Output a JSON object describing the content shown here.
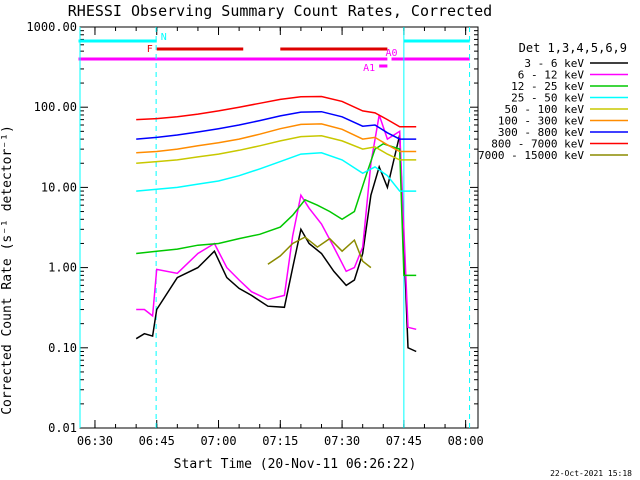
{
  "chart_data": {
    "type": "line",
    "title": "RHESSI Observing Summary Count Rates, Corrected",
    "xlabel": "Start Time (20-Nov-11 06:26:22)",
    "ylabel": "Corrected Count Rate (s⁻¹ detector⁻¹)",
    "xscale": "time",
    "yscale": "log",
    "xlim": [
      "06:26:22",
      "08:03:00"
    ],
    "ylim": [
      0.01,
      1000
    ],
    "xticks": [
      "06:30",
      "06:45",
      "07:00",
      "07:15",
      "07:30",
      "07:45",
      "08:00"
    ],
    "yticks": [
      "0.01",
      "0.10",
      "1.00",
      "10.00",
      "100.00",
      "1000.00"
    ],
    "legend_title": "Det 1,3,4,5,6,9",
    "legend_position": "right",
    "series": [
      {
        "name": "3 - 6 keV",
        "color": "#000000",
        "x": [
          "06:40",
          "06:42",
          "06:44",
          "06:45",
          "06:50",
          "06:55",
          "06:59",
          "07:02",
          "07:05",
          "07:08",
          "07:12",
          "07:16",
          "07:18",
          "07:20",
          "07:22",
          "07:25",
          "07:28",
          "07:31",
          "07:33",
          "07:35",
          "07:37",
          "07:39",
          "07:41",
          "07:44",
          "07:46",
          "07:48"
        ],
        "values": [
          0.13,
          0.15,
          0.14,
          0.3,
          0.75,
          1.0,
          1.6,
          0.75,
          0.55,
          0.45,
          0.33,
          0.32,
          1.0,
          3.0,
          2.0,
          1.5,
          0.9,
          0.6,
          0.7,
          1.5,
          8,
          18,
          10,
          45,
          0.1,
          0.09
        ]
      },
      {
        "name": "6 - 12 keV",
        "color": "#ff00ff",
        "x": [
          "06:40",
          "06:42",
          "06:44",
          "06:45",
          "06:50",
          "06:55",
          "06:59",
          "07:02",
          "07:05",
          "07:08",
          "07:12",
          "07:16",
          "07:18",
          "07:20",
          "07:22",
          "07:25",
          "07:28",
          "07:31",
          "07:33",
          "07:35",
          "07:37",
          "07:39",
          "07:41",
          "07:44",
          "07:46",
          "07:48"
        ],
        "values": [
          0.3,
          0.3,
          0.25,
          0.95,
          0.85,
          1.5,
          2.0,
          1.0,
          0.7,
          0.5,
          0.4,
          0.45,
          2.5,
          8.0,
          5.5,
          3.5,
          1.8,
          0.9,
          1.0,
          1.8,
          20,
          80,
          40,
          50,
          0.18,
          0.17
        ]
      },
      {
        "name": "12 - 25 keV",
        "color": "#00c800",
        "x": [
          "06:40",
          "06:45",
          "06:50",
          "06:55",
          "07:00",
          "07:05",
          "07:10",
          "07:15",
          "07:18",
          "07:21",
          "07:24",
          "07:27",
          "07:30",
          "07:33",
          "07:36",
          "07:38",
          "07:40",
          "07:44",
          "07:45",
          "07:48"
        ],
        "values": [
          1.5,
          1.6,
          1.7,
          1.9,
          2.0,
          2.3,
          2.6,
          3.2,
          4.5,
          7.0,
          6.0,
          5.0,
          4.0,
          5.0,
          15,
          30,
          35,
          30,
          0.8,
          0.8
        ]
      },
      {
        "name": "25 - 50 keV",
        "color": "#00ffff",
        "x": [
          "06:40",
          "06:45",
          "06:50",
          "06:55",
          "07:00",
          "07:05",
          "07:10",
          "07:15",
          "07:20",
          "07:25",
          "07:30",
          "07:35",
          "07:38",
          "07:41",
          "07:44",
          "07:45",
          "07:48"
        ],
        "values": [
          9,
          9.5,
          10,
          11,
          12,
          14,
          17,
          21,
          26,
          27,
          22,
          15,
          18,
          14,
          9,
          9,
          9
        ]
      },
      {
        "name": "50 - 100 keV",
        "color": "#c8c800",
        "x": [
          "06:40",
          "06:45",
          "06:50",
          "06:55",
          "07:00",
          "07:05",
          "07:10",
          "07:15",
          "07:20",
          "07:25",
          "07:30",
          "07:35",
          "07:38",
          "07:41",
          "07:44",
          "07:45",
          "07:48"
        ],
        "values": [
          20,
          21,
          22,
          24,
          26,
          29,
          33,
          38,
          43,
          44,
          38,
          30,
          32,
          26,
          22,
          22,
          22
        ]
      },
      {
        "name": "100 - 300 keV",
        "color": "#ff8c00",
        "x": [
          "06:40",
          "06:45",
          "06:50",
          "06:55",
          "07:00",
          "07:05",
          "07:10",
          "07:15",
          "07:20",
          "07:25",
          "07:30",
          "07:35",
          "07:38",
          "07:41",
          "07:44",
          "07:45",
          "07:48"
        ],
        "values": [
          27,
          28,
          30,
          33,
          36,
          40,
          46,
          54,
          61,
          62,
          53,
          40,
          42,
          34,
          28,
          28,
          28
        ]
      },
      {
        "name": "300 - 800 keV",
        "color": "#0000ff",
        "x": [
          "06:40",
          "06:45",
          "06:50",
          "06:55",
          "07:00",
          "07:05",
          "07:10",
          "07:15",
          "07:20",
          "07:25",
          "07:30",
          "07:35",
          "07:38",
          "07:41",
          "07:44",
          "07:45",
          "07:48"
        ],
        "values": [
          40,
          42,
          45,
          49,
          54,
          60,
          68,
          78,
          87,
          88,
          76,
          58,
          60,
          48,
          40,
          40,
          40
        ]
      },
      {
        "name": "800 - 7000 keV",
        "color": "#ff0000",
        "x": [
          "06:40",
          "06:45",
          "06:50",
          "06:55",
          "07:00",
          "07:05",
          "07:10",
          "07:15",
          "07:20",
          "07:25",
          "07:30",
          "07:35",
          "07:38",
          "07:41",
          "07:44",
          "07:45",
          "07:48"
        ],
        "values": [
          70,
          72,
          76,
          82,
          90,
          100,
          112,
          125,
          135,
          136,
          118,
          90,
          85,
          70,
          57,
          57,
          57
        ]
      },
      {
        "name": "7000 - 15000 keV",
        "color": "#8b8b00",
        "x": [
          "07:12",
          "07:15",
          "07:18",
          "07:21",
          "07:24",
          "07:27",
          "07:30",
          "07:33",
          "07:35",
          "07:37"
        ],
        "values": [
          1.1,
          1.4,
          2.0,
          2.4,
          1.8,
          2.3,
          1.6,
          2.2,
          1.2,
          1.0
        ]
      }
    ],
    "flags": [
      {
        "label": "N",
        "color": "#00ffff",
        "segments": [
          [
            "06:26",
            "06:45"
          ],
          [
            "07:45",
            "08:01"
          ]
        ]
      },
      {
        "label": "F",
        "color": "#dd0000",
        "segments": [
          [
            "06:45",
            "07:06"
          ],
          [
            "07:15",
            "07:41"
          ]
        ]
      },
      {
        "label": "A0",
        "color": "#ff00ff",
        "segments": [
          [
            "06:26",
            "07:41"
          ],
          [
            "07:42",
            "08:01"
          ]
        ]
      },
      {
        "label": "A1",
        "color": "#ff00ff",
        "segments": [
          [
            "07:39",
            "07:41"
          ]
        ]
      }
    ],
    "vlines": [
      {
        "color": "#00ffff",
        "style": "solid",
        "x": "06:26:22"
      },
      {
        "color": "#00ffff",
        "style": "dashed",
        "x": "06:44:51"
      },
      {
        "color": "#00ffff",
        "style": "solid",
        "x": "07:45:00"
      },
      {
        "color": "#00ffff",
        "style": "dashed",
        "x": "08:00:57"
      }
    ]
  },
  "footer_date": "22-Oct-2021 15:18"
}
